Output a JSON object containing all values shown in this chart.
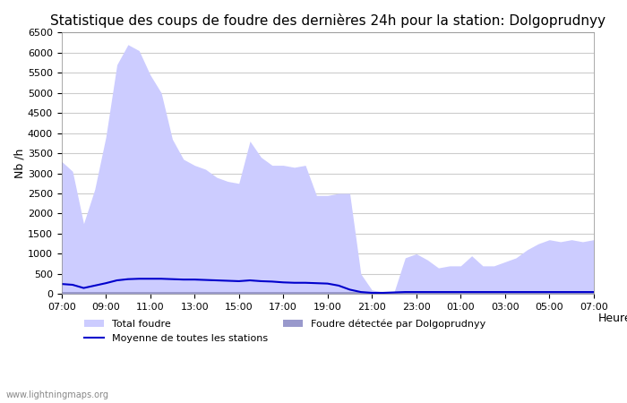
{
  "title": "Statistique des coups de foudre des dernières 24h pour la station: Dolgoprudnyy",
  "xlabel": "Heure",
  "ylabel": "Nb /h",
  "watermark": "www.lightningmaps.org",
  "ylim": [
    0,
    6500
  ],
  "yticks": [
    0,
    500,
    1000,
    1500,
    2000,
    2500,
    3000,
    3500,
    4000,
    4500,
    5000,
    5500,
    6000,
    6500
  ],
  "x_labels": [
    "07:00",
    "09:00",
    "11:00",
    "13:00",
    "15:00",
    "17:00",
    "19:00",
    "21:00",
    "23:00",
    "01:00",
    "03:00",
    "05:00",
    "07:00"
  ],
  "total_foudre": [
    3300,
    3050,
    1750,
    2600,
    3900,
    5700,
    6200,
    6050,
    5450,
    5000,
    3850,
    3350,
    3200,
    3100,
    2900,
    2800,
    2750,
    3800,
    3400,
    3200,
    3200,
    3150,
    3200,
    2450,
    2450,
    2500,
    2500,
    500,
    100,
    50,
    50,
    900,
    1000,
    850,
    650,
    700,
    700,
    950,
    700,
    700,
    800,
    900,
    1100,
    1250,
    1350,
    1300,
    1350,
    1300,
    1350
  ],
  "foudre_detected": [
    50,
    50,
    50,
    50,
    50,
    50,
    50,
    50,
    50,
    50,
    50,
    50,
    50,
    50,
    50,
    50,
    50,
    50,
    50,
    50,
    50,
    50,
    50,
    50,
    50,
    50,
    50,
    50,
    50,
    50,
    50,
    50,
    50,
    50,
    50,
    50,
    50,
    50,
    50,
    50,
    50,
    50,
    50,
    50,
    50,
    50,
    50,
    50,
    50
  ],
  "moyenne": [
    250,
    230,
    150,
    210,
    270,
    340,
    370,
    380,
    380,
    380,
    370,
    360,
    360,
    350,
    340,
    330,
    320,
    340,
    320,
    310,
    290,
    280,
    280,
    270,
    260,
    210,
    110,
    50,
    30,
    30,
    40,
    50,
    50,
    50,
    50,
    50,
    50,
    50,
    50,
    50,
    50,
    50,
    50,
    50,
    50,
    50,
    50,
    50,
    50
  ],
  "color_total": "#ccccff",
  "color_detected": "#9999cc",
  "color_moyenne": "#0000cc",
  "legend_total": "Total foudre",
  "legend_moyenne": "Moyenne de toutes les stations",
  "legend_detected": "Foudre détectée par Dolgoprudnyy",
  "bg_color": "#ffffff",
  "grid_color": "#cccccc",
  "title_fontsize": 11,
  "axis_fontsize": 9,
  "tick_fontsize": 8
}
